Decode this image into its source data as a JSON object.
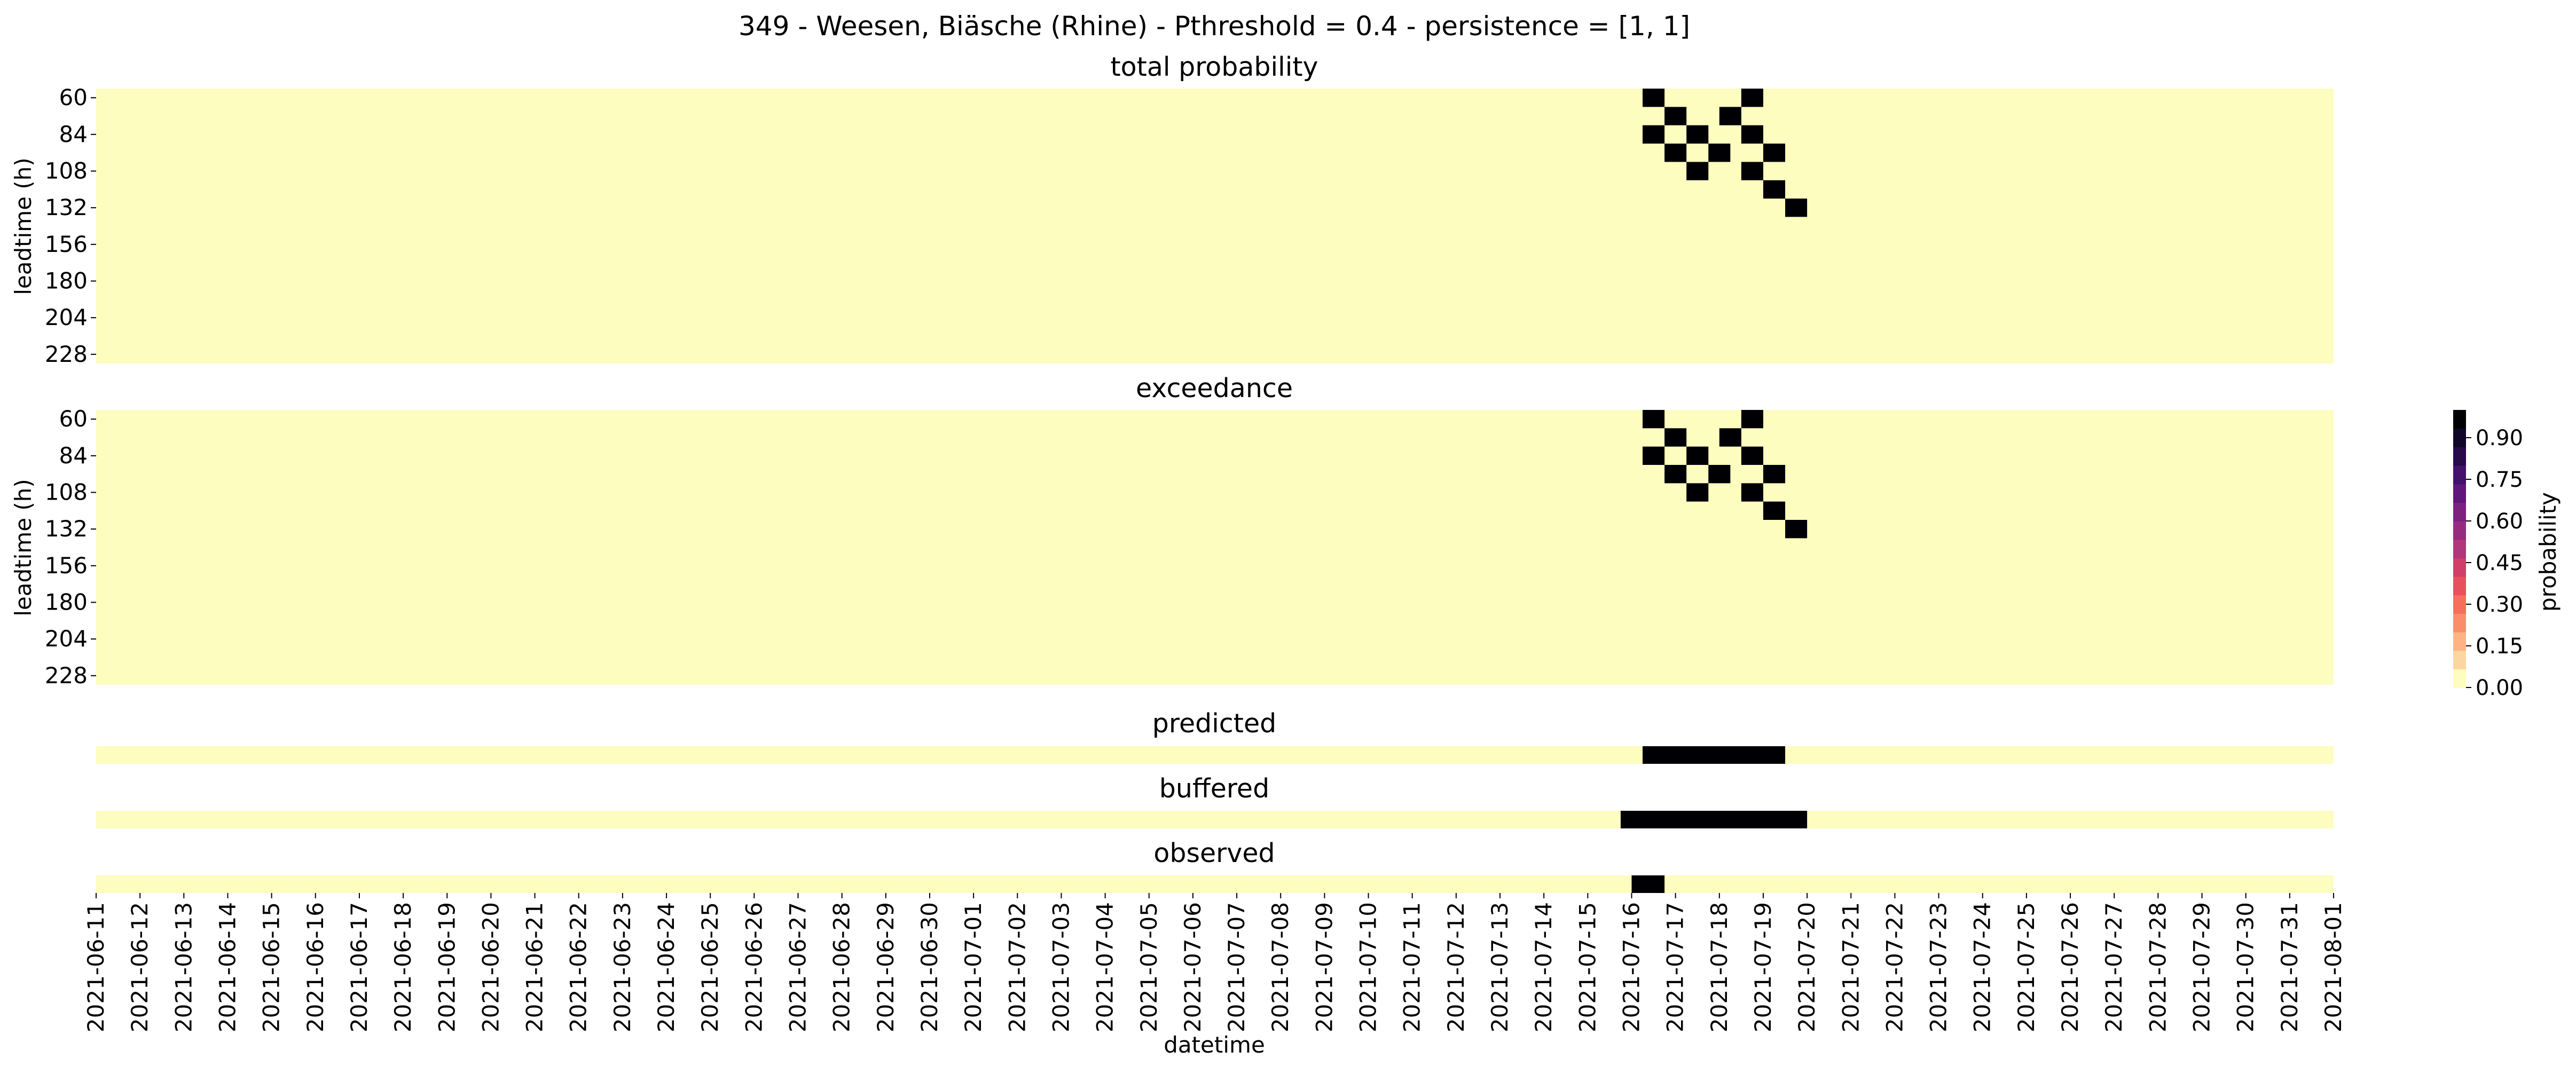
{
  "figure": {
    "suptitle": "349 - Weesen, Biäsche (Rhine) - Pthreshold = 0.4 - persistence = [1, 1]",
    "xlabel": "datetime"
  },
  "chart_data": [
    {
      "type": "heatmap",
      "title": "total probability",
      "ylabel": "leadtime (h)",
      "x_categories": [
        "2021-06-11",
        "2021-06-12",
        "2021-06-13",
        "2021-06-14",
        "2021-06-15",
        "2021-06-16",
        "2021-06-17",
        "2021-06-18",
        "2021-06-19",
        "2021-06-20",
        "2021-06-21",
        "2021-06-22",
        "2021-06-23",
        "2021-06-24",
        "2021-06-25",
        "2021-06-26",
        "2021-06-27",
        "2021-06-28",
        "2021-06-29",
        "2021-06-30",
        "2021-07-01",
        "2021-07-02",
        "2021-07-03",
        "2021-07-04",
        "2021-07-05",
        "2021-07-06",
        "2021-07-07",
        "2021-07-08",
        "2021-07-09",
        "2021-07-10",
        "2021-07-11",
        "2021-07-12",
        "2021-07-13",
        "2021-07-14",
        "2021-07-15",
        "2021-07-16",
        "2021-07-17",
        "2021-07-18",
        "2021-07-19",
        "2021-07-20",
        "2021-07-21",
        "2021-07-22",
        "2021-07-23",
        "2021-07-24",
        "2021-07-25",
        "2021-07-26",
        "2021-07-27",
        "2021-07-28",
        "2021-07-29",
        "2021-07-30",
        "2021-07-31",
        "2021-08-01"
      ],
      "y_tick_labels": [
        "60",
        "84",
        "108",
        "132",
        "156",
        "180",
        "204",
        "228"
      ],
      "value_range": [
        0,
        1
      ],
      "background_value": 0.0,
      "high_cells": [
        {
          "datetime": "2021-07-16 06:00",
          "leadtime_h": 60,
          "value": 1.0
        },
        {
          "datetime": "2021-07-18 12:00",
          "leadtime_h": 60,
          "value": 1.0
        },
        {
          "datetime": "2021-07-16 18:00",
          "leadtime_h": 72,
          "value": 1.0
        },
        {
          "datetime": "2021-07-18 00:00",
          "leadtime_h": 72,
          "value": 1.0
        },
        {
          "datetime": "2021-07-16 06:00",
          "leadtime_h": 84,
          "value": 1.0
        },
        {
          "datetime": "2021-07-17 06:00",
          "leadtime_h": 84,
          "value": 1.0
        },
        {
          "datetime": "2021-07-18 12:00",
          "leadtime_h": 84,
          "value": 1.0
        },
        {
          "datetime": "2021-07-16 18:00",
          "leadtime_h": 96,
          "value": 1.0
        },
        {
          "datetime": "2021-07-17 18:00",
          "leadtime_h": 96,
          "value": 1.0
        },
        {
          "datetime": "2021-07-19 00:00",
          "leadtime_h": 96,
          "value": 1.0
        },
        {
          "datetime": "2021-07-17 06:00",
          "leadtime_h": 108,
          "value": 1.0
        },
        {
          "datetime": "2021-07-18 12:00",
          "leadtime_h": 108,
          "value": 1.0
        },
        {
          "datetime": "2021-07-19 00:00",
          "leadtime_h": 120,
          "value": 1.0
        },
        {
          "datetime": "2021-07-19 12:00",
          "leadtime_h": 132,
          "value": 1.0
        }
      ]
    },
    {
      "type": "heatmap",
      "title": "exceedance",
      "ylabel": "leadtime (h)",
      "y_tick_labels": [
        "60",
        "84",
        "108",
        "132",
        "156",
        "180",
        "204",
        "228"
      ],
      "value_range": [
        0,
        1
      ],
      "background_value": 0.0,
      "high_cells": [
        {
          "datetime": "2021-07-16 06:00",
          "leadtime_h": 60,
          "value": 1.0
        },
        {
          "datetime": "2021-07-18 12:00",
          "leadtime_h": 60,
          "value": 1.0
        },
        {
          "datetime": "2021-07-16 18:00",
          "leadtime_h": 72,
          "value": 1.0
        },
        {
          "datetime": "2021-07-18 00:00",
          "leadtime_h": 72,
          "value": 1.0
        },
        {
          "datetime": "2021-07-16 06:00",
          "leadtime_h": 84,
          "value": 1.0
        },
        {
          "datetime": "2021-07-17 06:00",
          "leadtime_h": 84,
          "value": 1.0
        },
        {
          "datetime": "2021-07-18 12:00",
          "leadtime_h": 84,
          "value": 1.0
        },
        {
          "datetime": "2021-07-16 18:00",
          "leadtime_h": 96,
          "value": 1.0
        },
        {
          "datetime": "2021-07-17 18:00",
          "leadtime_h": 96,
          "value": 1.0
        },
        {
          "datetime": "2021-07-19 00:00",
          "leadtime_h": 96,
          "value": 1.0
        },
        {
          "datetime": "2021-07-17 06:00",
          "leadtime_h": 108,
          "value": 1.0
        },
        {
          "datetime": "2021-07-18 12:00",
          "leadtime_h": 108,
          "value": 1.0
        },
        {
          "datetime": "2021-07-19 00:00",
          "leadtime_h": 120,
          "value": 1.0
        },
        {
          "datetime": "2021-07-19 12:00",
          "leadtime_h": 132,
          "value": 1.0
        }
      ]
    },
    {
      "type": "heatmap",
      "title": "predicted",
      "background_value": 0.0,
      "high_periods": [
        {
          "start": "2021-07-16 06:00",
          "end": "2021-07-19 12:00",
          "value": 1.0
        }
      ]
    },
    {
      "type": "heatmap",
      "title": "buffered",
      "background_value": 0.0,
      "high_periods": [
        {
          "start": "2021-07-15 18:00",
          "end": "2021-07-20 00:00",
          "value": 1.0
        }
      ]
    },
    {
      "type": "heatmap",
      "title": "observed",
      "background_value": 0.0,
      "high_periods": [
        {
          "start": "2021-07-16 00:00",
          "end": "2021-07-16 18:00",
          "value": 1.0
        }
      ]
    }
  ],
  "colorbar": {
    "label": "probability",
    "cmap": "magma_r",
    "range": [
      0,
      1
    ],
    "tick_values": [
      0,
      0.15,
      0.3,
      0.45,
      0.6,
      0.75,
      0.9
    ],
    "tick_labels": [
      "0.00",
      "0.15",
      "0.30",
      "0.45",
      "0.60",
      "0.75",
      "0.90"
    ],
    "colors": [
      "#fcfdbf",
      "#fcd6a0",
      "#fdb384",
      "#fb8d6b",
      "#f66f5c",
      "#e8515c",
      "#cf3f6a",
      "#b2367b",
      "#962c80",
      "#7c217f",
      "#5f177c",
      "#44106b",
      "#28094a",
      "#10062a",
      "#000004"
    ]
  }
}
